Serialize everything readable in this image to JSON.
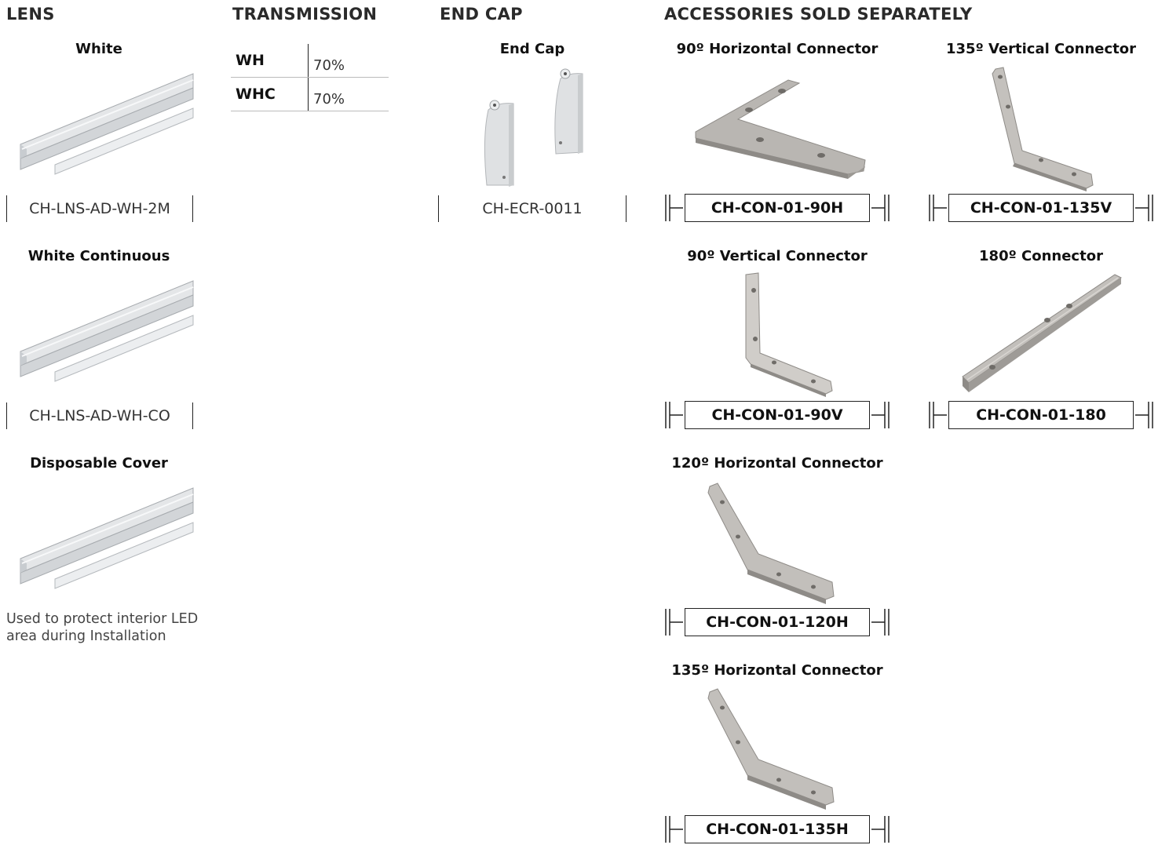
{
  "sections": {
    "lens": "LENS",
    "transmission": "TRANSMISSION",
    "end_cap": "END CAP",
    "accessories": "ACCESSORIES SOLD SEPARATELY"
  },
  "lens_items": [
    {
      "title": "White",
      "code": "CH-LNS-AD-WH-2M"
    },
    {
      "title": "White Continuous",
      "code": "CH-LNS-AD-WH-CO"
    },
    {
      "title": "Disposable Cover",
      "description": "Used to protect interior LED area during Installation"
    }
  ],
  "transmission": [
    {
      "code": "WH",
      "value": "70%"
    },
    {
      "code": "WHC",
      "value": "70%"
    }
  ],
  "end_cap": {
    "title": "End Cap",
    "code": "CH-ECR-0011"
  },
  "accessories": [
    {
      "title": "90º Horizontal Connector",
      "code": "CH-CON-01-90H"
    },
    {
      "title": "135º Vertical Connector",
      "code": "CH-CON-01-135V"
    },
    {
      "title": "90º Vertical Connector",
      "code": "CH-CON-01-90V"
    },
    {
      "title": "180º Connector",
      "code": "CH-CON-01-180"
    },
    {
      "title": "120º Horizontal Connector",
      "code": "CH-CON-01-120H"
    },
    {
      "title": "135º Horizontal Connector",
      "code": "CH-CON-01-135H"
    }
  ],
  "colors": {
    "metal": "#bdbab6",
    "metal_dark": "#8e8b87",
    "lens": "#e2e4e6",
    "lens_dark": "#b8bcc0"
  }
}
